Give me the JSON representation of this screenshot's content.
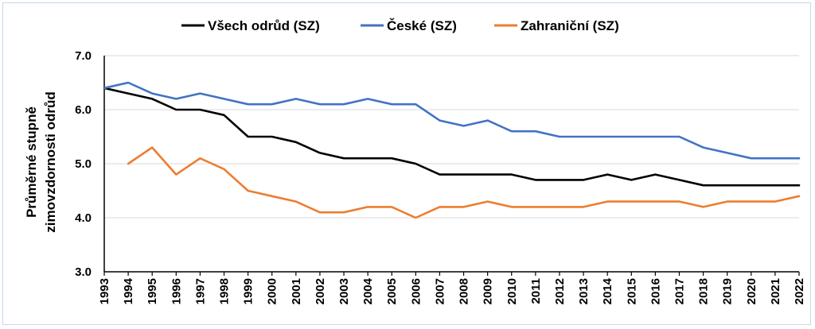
{
  "chart_data": {
    "type": "line",
    "title": "",
    "xlabel": "",
    "ylabel": [
      "Průměrné stupně",
      "zimovzdornosti odrůd"
    ],
    "ylim": [
      3.0,
      7.0
    ],
    "yticks": [
      "3.0",
      "4.0",
      "5.0",
      "6.0",
      "7.0"
    ],
    "grid": true,
    "legend_position": "top",
    "x": [
      1993,
      1994,
      1995,
      1996,
      1997,
      1998,
      1999,
      2000,
      2001,
      2002,
      2003,
      2004,
      2005,
      2006,
      2007,
      2008,
      2009,
      2010,
      2011,
      2012,
      2013,
      2014,
      2015,
      2016,
      2017,
      2018,
      2019,
      2020,
      2021,
      2022
    ],
    "series": [
      {
        "name": "Všech odrůd (SZ)",
        "color": "#000000",
        "values": [
          6.4,
          6.3,
          6.2,
          6.0,
          6.0,
          5.9,
          5.5,
          5.5,
          5.4,
          5.2,
          5.1,
          5.1,
          5.1,
          5.0,
          4.8,
          4.8,
          4.8,
          4.8,
          4.7,
          4.7,
          4.7,
          4.8,
          4.7,
          4.8,
          4.7,
          4.6,
          4.6,
          4.6,
          4.6,
          4.6
        ]
      },
      {
        "name": "České (SZ)",
        "color": "#4472c4",
        "values": [
          6.4,
          6.5,
          6.3,
          6.2,
          6.3,
          6.2,
          6.1,
          6.1,
          6.2,
          6.1,
          6.1,
          6.2,
          6.1,
          6.1,
          5.8,
          5.7,
          5.8,
          5.6,
          5.6,
          5.5,
          5.5,
          5.5,
          5.5,
          5.5,
          5.5,
          5.3,
          5.2,
          5.1,
          5.1,
          5.1
        ]
      },
      {
        "name": "Zahraniční (SZ)",
        "color": "#ed7d31",
        "values": [
          null,
          5.0,
          5.3,
          4.8,
          5.1,
          4.9,
          4.5,
          4.4,
          4.3,
          4.1,
          4.1,
          4.2,
          4.2,
          4.0,
          4.2,
          4.2,
          4.3,
          4.2,
          4.2,
          4.2,
          4.2,
          4.3,
          4.3,
          4.3,
          4.3,
          4.2,
          4.3,
          4.3,
          4.3,
          4.4
        ]
      }
    ]
  }
}
